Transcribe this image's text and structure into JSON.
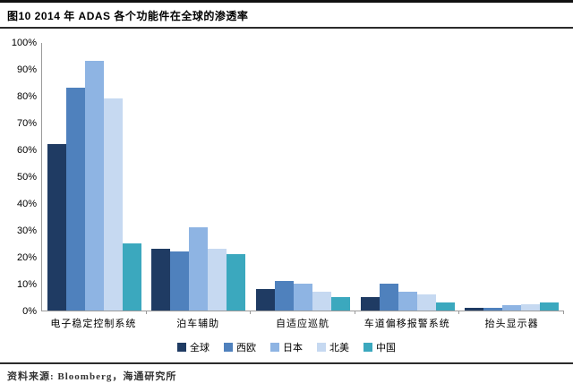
{
  "page": {
    "title": "图10  2014 年 ADAS 各个功能件在全球的渗透率",
    "source": "资料来源: Bloomberg，海通研究所"
  },
  "chart_data": {
    "type": "bar",
    "title": "2014 年 ADAS 各个功能件在全球的渗透率",
    "categories": [
      "电子稳定控制系统",
      "泊车辅助",
      "自适应巡航",
      "车道偏移报警系统",
      "抬头显示器"
    ],
    "series": [
      {
        "name": "全球",
        "color": "#1F3B63",
        "values": [
          62,
          23,
          8,
          5,
          1
        ]
      },
      {
        "name": "西欧",
        "color": "#4F81BD",
        "values": [
          83,
          22,
          11,
          10,
          1
        ]
      },
      {
        "name": "日本",
        "color": "#8EB4E3",
        "values": [
          93,
          31,
          10,
          7,
          2
        ]
      },
      {
        "name": "北美",
        "color": "#C6D9F1",
        "values": [
          79,
          23,
          7,
          6,
          2.5
        ]
      },
      {
        "name": "中国",
        "color": "#3BA8BE",
        "values": [
          25,
          21,
          5,
          3,
          3
        ]
      }
    ],
    "ylabel": "",
    "xlabel": "",
    "ylim": [
      0,
      100
    ],
    "y_tick_labels": [
      "100%",
      "90%",
      "80%",
      "70%",
      "60%",
      "50%",
      "40%",
      "30%",
      "20%",
      "10%",
      "0%"
    ],
    "unit": "%",
    "grid": false,
    "legend_position": "bottom",
    "axis_color": "#9a9a9a"
  }
}
